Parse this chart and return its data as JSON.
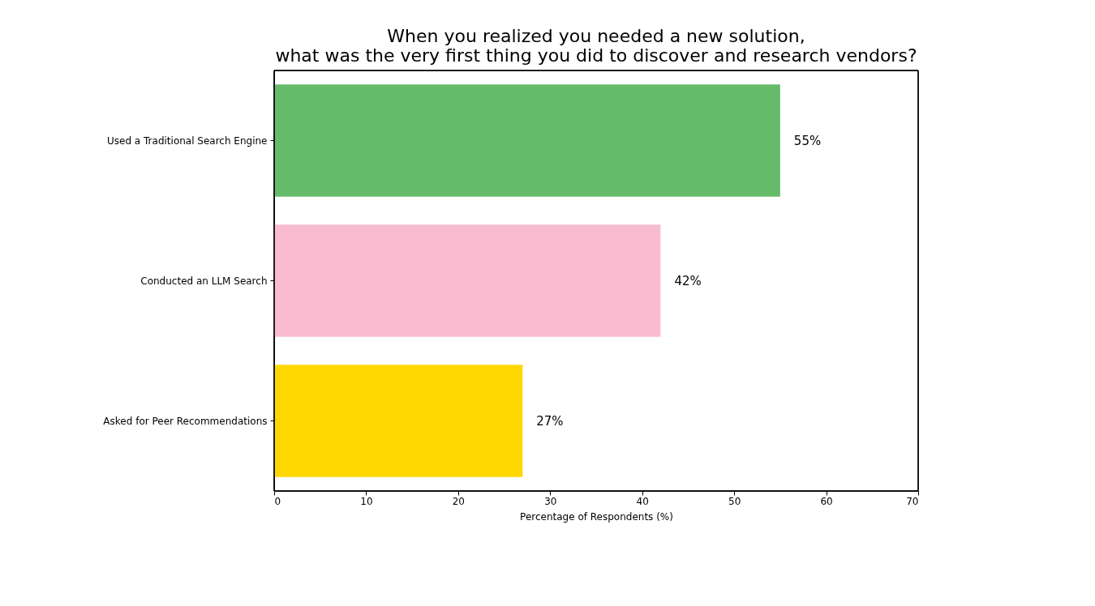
{
  "chart_data": {
    "type": "bar",
    "orientation": "horizontal",
    "title": "When you realized you needed a new solution,\nwhat was the very first thing you did to discover and research vendors?",
    "xlabel": "Percentage of Respondents (%)",
    "categories": [
      "Used a Traditional Search Engine",
      "Conducted an LLM Search",
      "Asked for Peer Recommendations"
    ],
    "values": [
      55,
      42,
      27
    ],
    "colors": [
      "#66bb6a",
      "#f8bbd0",
      "#ffd700"
    ],
    "value_labels": [
      "55%",
      "42%",
      "27%"
    ],
    "xlim": [
      0,
      70
    ],
    "xticks": [
      0,
      10,
      20,
      30,
      40,
      50,
      60,
      70
    ],
    "grid": false
  }
}
